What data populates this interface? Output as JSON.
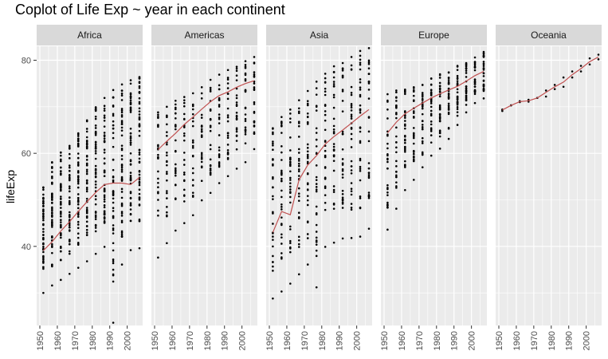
{
  "chart_data": {
    "type": "scatter",
    "title": "Coplot of Life Exp ~ year in each continent",
    "xlabel": "",
    "ylabel": "lifeExp",
    "x_ticks": [
      1950,
      1960,
      1970,
      1980,
      1990,
      2000
    ],
    "y_ticks": [
      40,
      60,
      80
    ],
    "xlim": [
      1950,
      2007
    ],
    "ylim": [
      23,
      83
    ],
    "grid": true,
    "colors": {
      "panel_background": "#ebebeb",
      "grid": "#ffffff",
      "strip_background": "#d9d9d9",
      "points": "#000000",
      "smooth_line": "#c05050"
    },
    "years": [
      1952,
      1957,
      1962,
      1967,
      1972,
      1977,
      1982,
      1987,
      1992,
      1997,
      2002,
      2007
    ],
    "panels": [
      {
        "name": "Africa",
        "smooth": [
          39.1,
          41.0,
          43.3,
          45.3,
          47.5,
          49.6,
          51.6,
          53.3,
          53.6,
          53.6,
          53.3,
          54.8
        ],
        "ranges": [
          [
            30.0,
            52.7
          ],
          [
            31.6,
            58.1
          ],
          [
            32.8,
            60.2
          ],
          [
            34.1,
            61.6
          ],
          [
            35.4,
            64.3
          ],
          [
            36.8,
            67.1
          ],
          [
            38.4,
            69.9
          ],
          [
            39.9,
            71.9
          ],
          [
            23.6,
            73.6
          ],
          [
            36.1,
            74.8
          ],
          [
            39.2,
            75.7
          ],
          [
            39.6,
            76.4
          ]
        ]
      },
      {
        "name": "Americas",
        "smooth": [
          60.8,
          62.6,
          64.3,
          66.2,
          67.8,
          69.5,
          71.1,
          72.4,
          73.2,
          74.2,
          75.0,
          75.6
        ],
        "ranges": [
          [
            37.6,
            68.8
          ],
          [
            40.7,
            70.0
          ],
          [
            43.4,
            71.3
          ],
          [
            45.0,
            72.1
          ],
          [
            46.7,
            72.9
          ],
          [
            49.9,
            74.2
          ],
          [
            51.5,
            75.8
          ],
          [
            53.6,
            76.9
          ],
          [
            55.1,
            77.9
          ],
          [
            56.7,
            78.6
          ],
          [
            58.1,
            79.8
          ],
          [
            60.9,
            80.7
          ]
        ]
      },
      {
        "name": "Asia",
        "smooth": [
          43.0,
          47.5,
          46.8,
          54.3,
          57.5,
          59.5,
          62.0,
          63.6,
          65.0,
          66.5,
          68.0,
          69.4
        ],
        "ranges": [
          [
            28.8,
            65.4
          ],
          [
            30.3,
            67.8
          ],
          [
            32.0,
            69.4
          ],
          [
            34.0,
            71.4
          ],
          [
            36.1,
            73.4
          ],
          [
            31.2,
            75.4
          ],
          [
            39.9,
            77.1
          ],
          [
            40.8,
            78.7
          ],
          [
            41.7,
            79.4
          ],
          [
            41.8,
            80.7
          ],
          [
            42.1,
            82.0
          ],
          [
            43.8,
            82.6
          ]
        ]
      },
      {
        "name": "Europe",
        "smooth": [
          64.4,
          66.7,
          68.5,
          69.7,
          70.8,
          71.9,
          72.8,
          73.6,
          74.4,
          75.5,
          76.7,
          77.6
        ],
        "ranges": [
          [
            43.6,
            72.7
          ],
          [
            48.1,
            73.5
          ],
          [
            52.1,
            73.7
          ],
          [
            54.3,
            74.2
          ],
          [
            57.0,
            74.7
          ],
          [
            59.5,
            76.1
          ],
          [
            61.0,
            76.99
          ],
          [
            63.1,
            77.4
          ],
          [
            66.1,
            78.8
          ],
          [
            68.8,
            79.4
          ],
          [
            70.8,
            80.6
          ],
          [
            71.8,
            81.8
          ]
        ]
      },
      {
        "name": "Oceania",
        "smooth": [
          69.3,
          70.3,
          71.1,
          71.3,
          71.9,
          73.1,
          74.3,
          75.3,
          76.9,
          78.2,
          79.7,
          80.7
        ],
        "ranges": [
          [
            69.1,
            69.4
          ],
          [
            70.3,
            70.3
          ],
          [
            71.0,
            71.2
          ],
          [
            71.1,
            71.5
          ],
          [
            71.9,
            71.9
          ],
          [
            72.2,
            73.5
          ],
          [
            73.8,
            74.7
          ],
          [
            74.3,
            76.3
          ],
          [
            76.3,
            77.6
          ],
          [
            77.6,
            78.8
          ],
          [
            79.1,
            80.4
          ],
          [
            80.2,
            81.2
          ]
        ]
      }
    ]
  }
}
